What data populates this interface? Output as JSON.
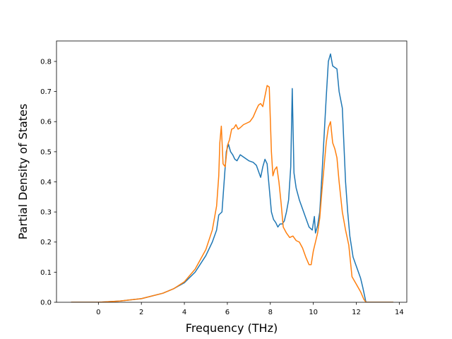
{
  "chart_data": {
    "type": "line",
    "title": "",
    "xlabel": "Frequency (THz)",
    "ylabel": "Partial Density of States",
    "xlim": [
      -1.95,
      14.35
    ],
    "ylim": [
      0.0,
      0.868
    ],
    "xticks": [
      0,
      2,
      4,
      6,
      8,
      10,
      12,
      14
    ],
    "yticks": [
      0.0,
      0.1,
      0.2,
      0.3,
      0.4,
      0.5,
      0.6,
      0.7,
      0.8
    ],
    "ytick_labels": [
      "0.0",
      "0.1",
      "0.2",
      "0.3",
      "0.4",
      "0.5",
      "0.6",
      "0.7",
      "0.8"
    ],
    "grid": false,
    "legend": null,
    "series": [
      {
        "color": "#1f77b4",
        "x": [
          -1.25,
          0.0,
          1.0,
          2.0,
          3.0,
          3.5,
          4.0,
          4.5,
          5.0,
          5.3,
          5.5,
          5.6,
          5.75,
          5.85,
          5.95,
          6.05,
          6.15,
          6.25,
          6.35,
          6.45,
          6.6,
          6.8,
          7.0,
          7.2,
          7.35,
          7.45,
          7.55,
          7.65,
          7.75,
          7.85,
          7.95,
          8.05,
          8.15,
          8.25,
          8.35,
          8.45,
          8.55,
          8.65,
          8.75,
          8.85,
          8.95,
          9.02,
          9.1,
          9.2,
          9.35,
          9.5,
          9.65,
          9.8,
          9.95,
          10.05,
          10.1,
          10.2,
          10.3,
          10.4,
          10.5,
          10.6,
          10.7,
          10.8,
          10.9,
          11.0,
          11.1,
          11.2,
          11.35,
          11.5,
          11.6,
          11.7,
          11.85,
          12.0,
          12.1,
          12.2,
          12.3,
          12.45,
          13.7
        ],
        "y": [
          0.0,
          0.0,
          0.004,
          0.012,
          0.03,
          0.045,
          0.065,
          0.1,
          0.155,
          0.2,
          0.24,
          0.29,
          0.3,
          0.4,
          0.5,
          0.525,
          0.5,
          0.49,
          0.475,
          0.47,
          0.49,
          0.48,
          0.47,
          0.465,
          0.455,
          0.435,
          0.415,
          0.45,
          0.475,
          0.46,
          0.38,
          0.3,
          0.275,
          0.265,
          0.25,
          0.26,
          0.26,
          0.27,
          0.3,
          0.34,
          0.45,
          0.71,
          0.43,
          0.38,
          0.34,
          0.31,
          0.28,
          0.25,
          0.24,
          0.285,
          0.23,
          0.255,
          0.3,
          0.42,
          0.55,
          0.68,
          0.8,
          0.825,
          0.785,
          0.78,
          0.775,
          0.7,
          0.645,
          0.4,
          0.3,
          0.22,
          0.15,
          0.12,
          0.1,
          0.08,
          0.05,
          0.0,
          0.0
        ]
      },
      {
        "color": "#ff7f0e",
        "x": [
          -1.25,
          0.0,
          1.0,
          2.0,
          3.0,
          3.5,
          4.0,
          4.5,
          5.0,
          5.3,
          5.5,
          5.6,
          5.65,
          5.72,
          5.8,
          5.9,
          6.0,
          6.1,
          6.2,
          6.3,
          6.4,
          6.5,
          6.6,
          6.75,
          6.9,
          7.05,
          7.2,
          7.35,
          7.45,
          7.55,
          7.65,
          7.75,
          7.85,
          7.95,
          8.05,
          8.12,
          8.2,
          8.3,
          8.4,
          8.5,
          8.6,
          8.75,
          8.9,
          9.05,
          9.2,
          9.35,
          9.5,
          9.65,
          9.8,
          9.9,
          10.0,
          10.1,
          10.2,
          10.3,
          10.4,
          10.5,
          10.6,
          10.7,
          10.8,
          10.9,
          11.0,
          11.1,
          11.2,
          11.35,
          11.5,
          11.65,
          11.8,
          12.0,
          12.2,
          12.35,
          12.45,
          13.7
        ],
        "y": [
          0.0,
          0.0,
          0.004,
          0.012,
          0.03,
          0.045,
          0.068,
          0.11,
          0.175,
          0.24,
          0.32,
          0.42,
          0.53,
          0.585,
          0.46,
          0.45,
          0.52,
          0.54,
          0.575,
          0.578,
          0.59,
          0.575,
          0.58,
          0.59,
          0.595,
          0.6,
          0.615,
          0.64,
          0.655,
          0.66,
          0.65,
          0.685,
          0.72,
          0.715,
          0.5,
          0.42,
          0.44,
          0.45,
          0.4,
          0.33,
          0.25,
          0.23,
          0.215,
          0.22,
          0.205,
          0.2,
          0.18,
          0.15,
          0.125,
          0.125,
          0.17,
          0.2,
          0.23,
          0.28,
          0.37,
          0.45,
          0.53,
          0.58,
          0.6,
          0.53,
          0.51,
          0.48,
          0.4,
          0.3,
          0.24,
          0.19,
          0.085,
          0.06,
          0.035,
          0.01,
          0.0,
          0.0
        ]
      }
    ]
  }
}
